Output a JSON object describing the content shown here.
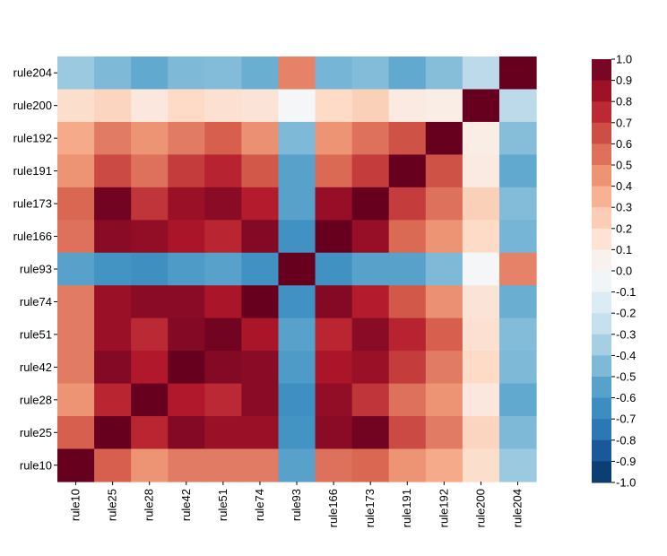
{
  "chart_data": {
    "type": "heatmap",
    "title": "",
    "xlabel": "",
    "ylabel": "",
    "x_categories": [
      "rule10",
      "rule25",
      "rule28",
      "rule42",
      "rule51",
      "rule74",
      "rule93",
      "rule166",
      "rule173",
      "rule191",
      "rule192",
      "rule200",
      "rule204"
    ],
    "y_categories_top_to_bottom": [
      "rule204",
      "rule200",
      "rule192",
      "rule191",
      "rule173",
      "rule166",
      "rule93",
      "rule74",
      "rule51",
      "rule42",
      "rule28",
      "rule25",
      "rule10"
    ],
    "matrix_rows_top_to_bottom": [
      [
        -0.38,
        -0.45,
        -0.52,
        -0.45,
        -0.44,
        -0.5,
        0.5,
        -0.47,
        -0.44,
        -0.52,
        -0.43,
        -0.3,
        1.0
      ],
      [
        0.18,
        0.22,
        0.12,
        0.2,
        0.16,
        0.14,
        -0.02,
        0.2,
        0.24,
        0.1,
        0.08,
        1.0,
        -0.3
      ],
      [
        0.38,
        0.52,
        0.45,
        0.52,
        0.6,
        0.46,
        -0.45,
        0.45,
        0.55,
        0.64,
        1.0,
        0.08,
        -0.43
      ],
      [
        0.45,
        0.66,
        0.55,
        0.7,
        0.77,
        0.62,
        -0.55,
        0.57,
        0.7,
        1.0,
        0.64,
        0.1,
        -0.52
      ],
      [
        0.58,
        0.97,
        0.72,
        0.86,
        0.9,
        0.79,
        -0.55,
        0.87,
        1.0,
        0.7,
        0.55,
        0.24,
        -0.44
      ],
      [
        0.55,
        0.9,
        0.88,
        0.82,
        0.76,
        0.92,
        -0.62,
        1.0,
        0.87,
        0.57,
        0.45,
        0.2,
        -0.47
      ],
      [
        -0.55,
        -0.6,
        -0.63,
        -0.57,
        -0.55,
        -0.62,
        1.0,
        -0.62,
        -0.55,
        -0.55,
        -0.45,
        -0.02,
        0.5
      ],
      [
        0.52,
        0.86,
        0.9,
        0.9,
        0.82,
        1.0,
        -0.62,
        0.92,
        0.79,
        0.62,
        0.46,
        0.14,
        -0.5
      ],
      [
        0.52,
        0.86,
        0.75,
        0.92,
        0.97,
        0.82,
        -0.55,
        0.76,
        0.9,
        0.77,
        0.6,
        0.16,
        -0.44
      ],
      [
        0.52,
        0.92,
        0.8,
        1.0,
        0.92,
        0.9,
        -0.57,
        0.82,
        0.86,
        0.7,
        0.52,
        0.2,
        -0.45
      ],
      [
        0.45,
        0.76,
        1.0,
        0.8,
        0.75,
        0.9,
        -0.63,
        0.88,
        0.72,
        0.55,
        0.45,
        0.12,
        -0.52
      ],
      [
        0.6,
        1.0,
        0.76,
        0.92,
        0.86,
        0.86,
        -0.6,
        0.9,
        0.97,
        0.66,
        0.52,
        0.22,
        -0.45
      ],
      [
        1.0,
        0.6,
        0.45,
        0.52,
        0.52,
        0.52,
        -0.55,
        0.55,
        0.58,
        0.45,
        0.38,
        0.18,
        -0.38
      ]
    ],
    "color_range": [
      -1.0,
      1.0
    ],
    "colorbar_ticks": [
      "1.0",
      "0.9",
      "0.8",
      "0.7",
      "0.6",
      "0.5",
      "0.4",
      "0.3",
      "0.2",
      "0.1",
      "0.0",
      "-0.1",
      "-0.2",
      "-0.3",
      "-0.4",
      "-0.5",
      "-0.6",
      "-0.7",
      "-0.8",
      "-0.9",
      "-1.0"
    ],
    "colorbar_tick_values": [
      1.0,
      0.9,
      0.8,
      0.7,
      0.6,
      0.5,
      0.4,
      0.3,
      0.2,
      0.1,
      0.0,
      -0.1,
      -0.2,
      -0.3,
      -0.4,
      -0.5,
      -0.6,
      -0.7,
      -0.8,
      -0.9,
      -1.0
    ],
    "colormap": "RdBu_r",
    "colorbar_steps": 20,
    "colorbar_palette_low_to_high": [
      "#053061",
      "#134b86",
      "#2166ac",
      "#3a87bd",
      "#4393c3",
      "#6aaed2",
      "#92c5de",
      "#bcdaea",
      "#d1e5f0",
      "#e9f2f7",
      "#f7f7f7",
      "#faeae2",
      "#fddbc7",
      "#f8bfa4",
      "#f4a582",
      "#e58268",
      "#d6604d",
      "#c43c3c",
      "#b2182b",
      "#8a0b25",
      "#67001f"
    ],
    "grid": false,
    "legend_position": "right"
  }
}
